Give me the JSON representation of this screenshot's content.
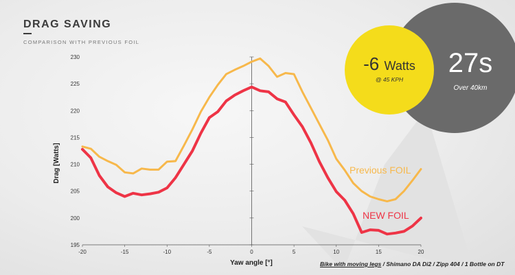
{
  "header": {
    "title": "DRAG SAVING",
    "subtitle": "COMPARISON WITH PREVIOUS FOIL"
  },
  "callouts": {
    "watts_value": "-6",
    "watts_unit": "Watts",
    "watts_condition": "@ 45 KPH",
    "time_value": "27s",
    "time_condition": "Over 40km"
  },
  "footnote": {
    "underlined": "Bike with moving legs",
    "rest": " / Shimano DA Di2 / Zipp 404 / 1 Bottle on DT"
  },
  "colors": {
    "previous": "#f7b84b",
    "new": "#ee3446",
    "yellow_bubble": "#f4dc1b",
    "grey_bubble": "#6a6a6a"
  },
  "chart_data": {
    "type": "line",
    "xlabel": "Yaw angle [°]",
    "ylabel": "Drag [Watts]",
    "xlim": [
      -20,
      20
    ],
    "ylim": [
      195,
      230
    ],
    "xticks": [
      -20,
      -15,
      -10,
      -5,
      0,
      5,
      10,
      15,
      20
    ],
    "yticks": [
      195,
      200,
      205,
      210,
      215,
      220,
      225,
      230
    ],
    "grid": false,
    "series": [
      {
        "name": "Previous FOIL",
        "color": "#f7b84b",
        "x": [
          -20,
          -19,
          -18,
          -17,
          -16,
          -15,
          -14,
          -13,
          -12,
          -11,
          -10,
          -9,
          -8,
          -7,
          -6,
          -5,
          -4,
          -3,
          -2,
          -1,
          0,
          1,
          2,
          3,
          4,
          5,
          6,
          7,
          8,
          9,
          10,
          11,
          12,
          13,
          14,
          15,
          16,
          17,
          18,
          19,
          20
        ],
        "y": [
          213.3,
          212.9,
          211.4,
          210.6,
          209.9,
          208.5,
          208.3,
          209.2,
          209.0,
          209.0,
          210.5,
          210.6,
          213.5,
          216.5,
          219.8,
          222.5,
          224.8,
          226.8,
          227.6,
          228.3,
          229.1,
          229.7,
          228.3,
          226.3,
          227.0,
          226.8,
          223.5,
          220.5,
          217.5,
          214.5,
          211.0,
          208.9,
          206.5,
          205.0,
          204.0,
          203.5,
          203.1,
          203.5,
          205.0,
          207.0,
          209.1
        ]
      },
      {
        "name": "NEW FOIL",
        "color": "#ee3446",
        "x": [
          -20,
          -19,
          -18,
          -17,
          -16,
          -15,
          -14,
          -13,
          -12,
          -11,
          -10,
          -9,
          -8,
          -7,
          -6,
          -5,
          -4,
          -3,
          -2,
          -1,
          0,
          1,
          2,
          3,
          4,
          5,
          6,
          7,
          8,
          9,
          10,
          11,
          12,
          13,
          14,
          15,
          16,
          17,
          18,
          19,
          20
        ],
        "y": [
          212.8,
          211.2,
          207.9,
          205.8,
          204.7,
          204.0,
          204.6,
          204.3,
          204.5,
          204.8,
          205.6,
          207.5,
          210.0,
          212.5,
          215.8,
          218.7,
          219.8,
          221.8,
          222.9,
          223.7,
          224.4,
          223.7,
          223.5,
          222.2,
          221.6,
          219.2,
          217.0,
          214.0,
          210.5,
          207.5,
          204.9,
          203.3,
          200.8,
          197.3,
          197.8,
          197.7,
          197.0,
          197.2,
          197.5,
          198.5,
          200.0
        ]
      }
    ]
  }
}
